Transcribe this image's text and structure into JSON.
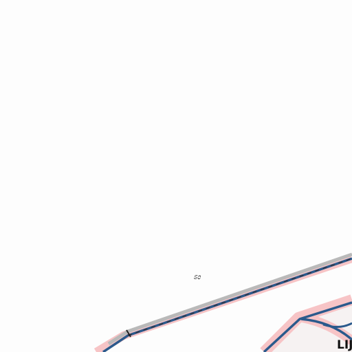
{
  "map": {
    "colors": {
      "background": "#fdfdfd",
      "route_casing": "#f7c4c6",
      "rail_gray": "#b9b9b9",
      "route_blue": "#2b5a8c",
      "rail_dash_dark": "#3a2a2a"
    },
    "labels": {
      "small_label": "ಽಂ",
      "area_label": "LIJ"
    }
  }
}
